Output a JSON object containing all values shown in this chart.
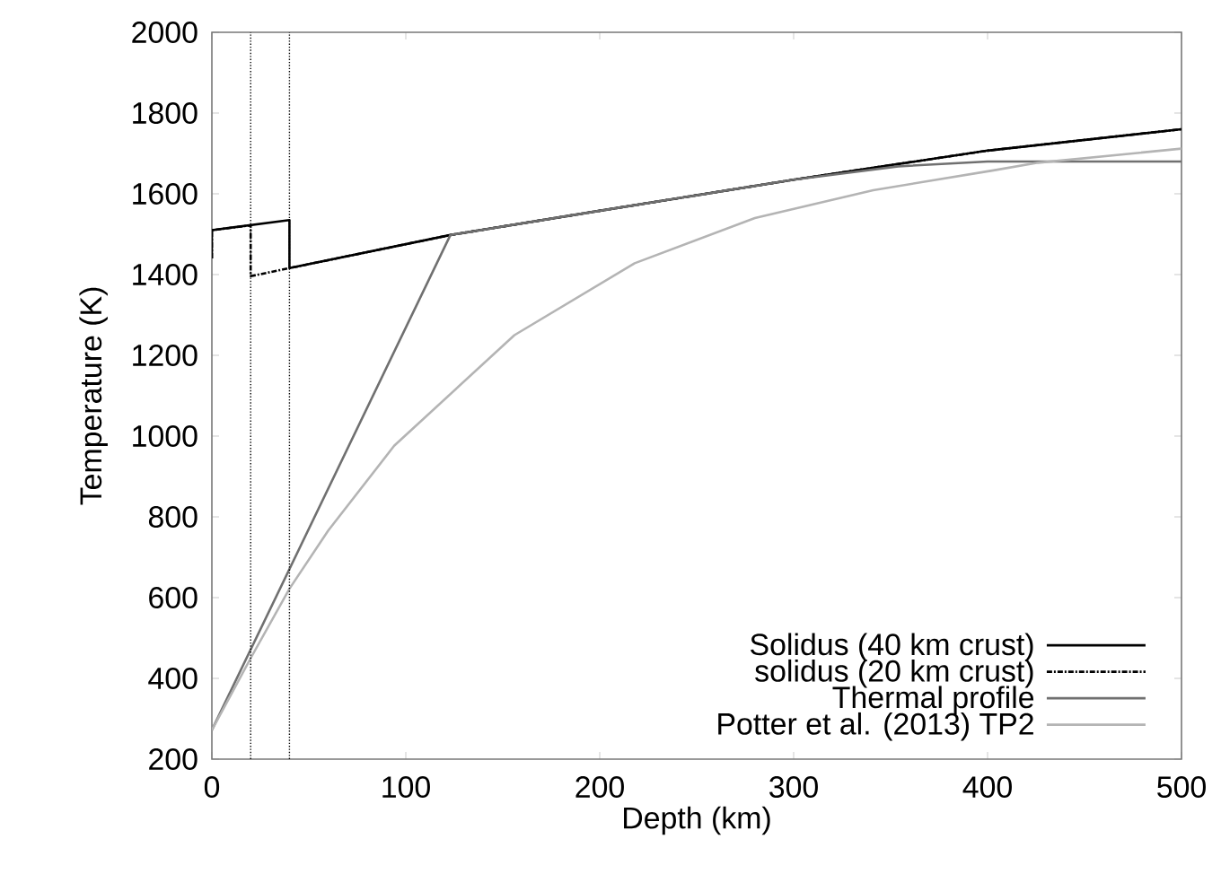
{
  "chart_data": {
    "type": "line",
    "xlabel": "Depth (km)",
    "ylabel": "Temperature (K)",
    "xlim": [
      0,
      500
    ],
    "ylim": [
      200,
      2000
    ],
    "xticks": [
      0,
      100,
      200,
      300,
      400,
      500
    ],
    "yticks": [
      200,
      400,
      600,
      800,
      1000,
      1200,
      1400,
      1600,
      1800,
      2000
    ],
    "legend": "bottom right",
    "series": [
      {
        "name": "Solidus (40 km crust)",
        "color": "#000000",
        "line_style": "solid",
        "x": [
          0,
          0,
          40,
          40,
          123,
          200,
          300,
          400,
          500
        ],
        "values": [
          1440,
          1510,
          1535,
          1416,
          1498,
          1558,
          1635,
          1707,
          1760
        ]
      },
      {
        "name": "solidus (20 km crust)",
        "color": "#000000",
        "line_style": "dashed",
        "x": [
          0,
          0,
          20,
          20,
          40,
          123,
          200,
          300,
          400,
          500
        ],
        "values": [
          1440,
          1510,
          1522,
          1396,
          1416,
          1498,
          1558,
          1635,
          1707,
          1760
        ]
      },
      {
        "name": "Thermal profile",
        "color": "#707070",
        "line_style": "solid",
        "x": [
          0,
          123,
          200,
          300,
          354,
          400,
          500
        ],
        "values": [
          272,
          1498,
          1558,
          1635,
          1668,
          1680,
          1680
        ]
      },
      {
        "name": "Potter et al. (2013) TP2",
        "color": "#b4b4b4",
        "line_style": "solid",
        "x": [
          0,
          20,
          40,
          60,
          94,
          156,
          218,
          280,
          341,
          403,
          426,
          500
        ],
        "values": [
          272,
          450,
          622,
          766,
          976,
          1250,
          1428,
          1540,
          1609,
          1658,
          1677,
          1712
        ]
      }
    ],
    "ref_lines": [
      {
        "axis": "x",
        "value": 20,
        "color": "#000000",
        "line_style": "dotted"
      },
      {
        "axis": "x",
        "value": 40,
        "color": "#000000",
        "line_style": "dotted"
      }
    ]
  }
}
